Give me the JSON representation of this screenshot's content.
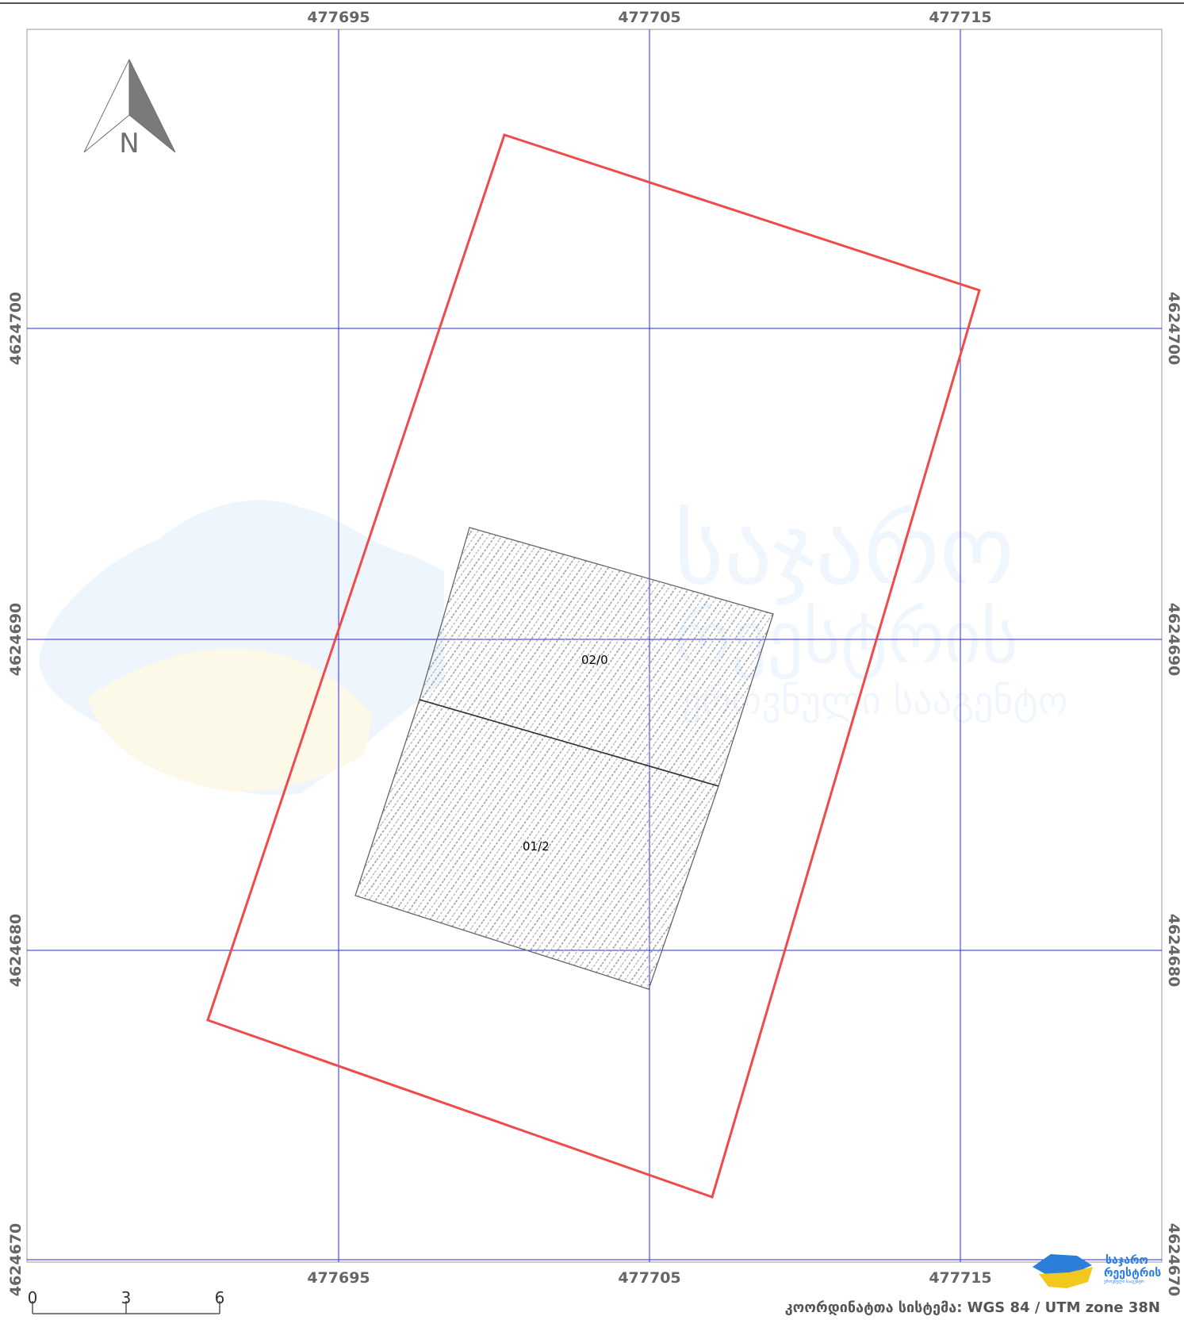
{
  "map": {
    "x_grid_labels": [
      "477695",
      "477705",
      "477715"
    ],
    "y_grid_labels": [
      "4624700",
      "4624690",
      "4624680",
      "4624670"
    ],
    "parcels": [
      {
        "label": "02/0"
      },
      {
        "label": "01/2"
      }
    ],
    "north_arrow": {
      "letter": "N",
      "icon": "north-arrow-icon"
    },
    "scale_bar": {
      "ticks": [
        "0",
        "3",
        "6"
      ]
    },
    "crs_label": "კოორდინატთა სისტემა: WGS 84 / UTM zone 38N",
    "colors": {
      "grid": "#2a2ae6",
      "boundary": "#f04a4a",
      "parcel_outline": "#555555",
      "hatch": "#9a9a9a",
      "label_gray": "#666666"
    },
    "watermark": {
      "lines": [
        "საჯარო",
        "რეესტრის",
        "ეროვნული სააგენტო"
      ]
    },
    "logo": {
      "lines": [
        "საჯარო",
        "რეესტრის",
        "ეროვნული სააგენტო"
      ]
    }
  }
}
